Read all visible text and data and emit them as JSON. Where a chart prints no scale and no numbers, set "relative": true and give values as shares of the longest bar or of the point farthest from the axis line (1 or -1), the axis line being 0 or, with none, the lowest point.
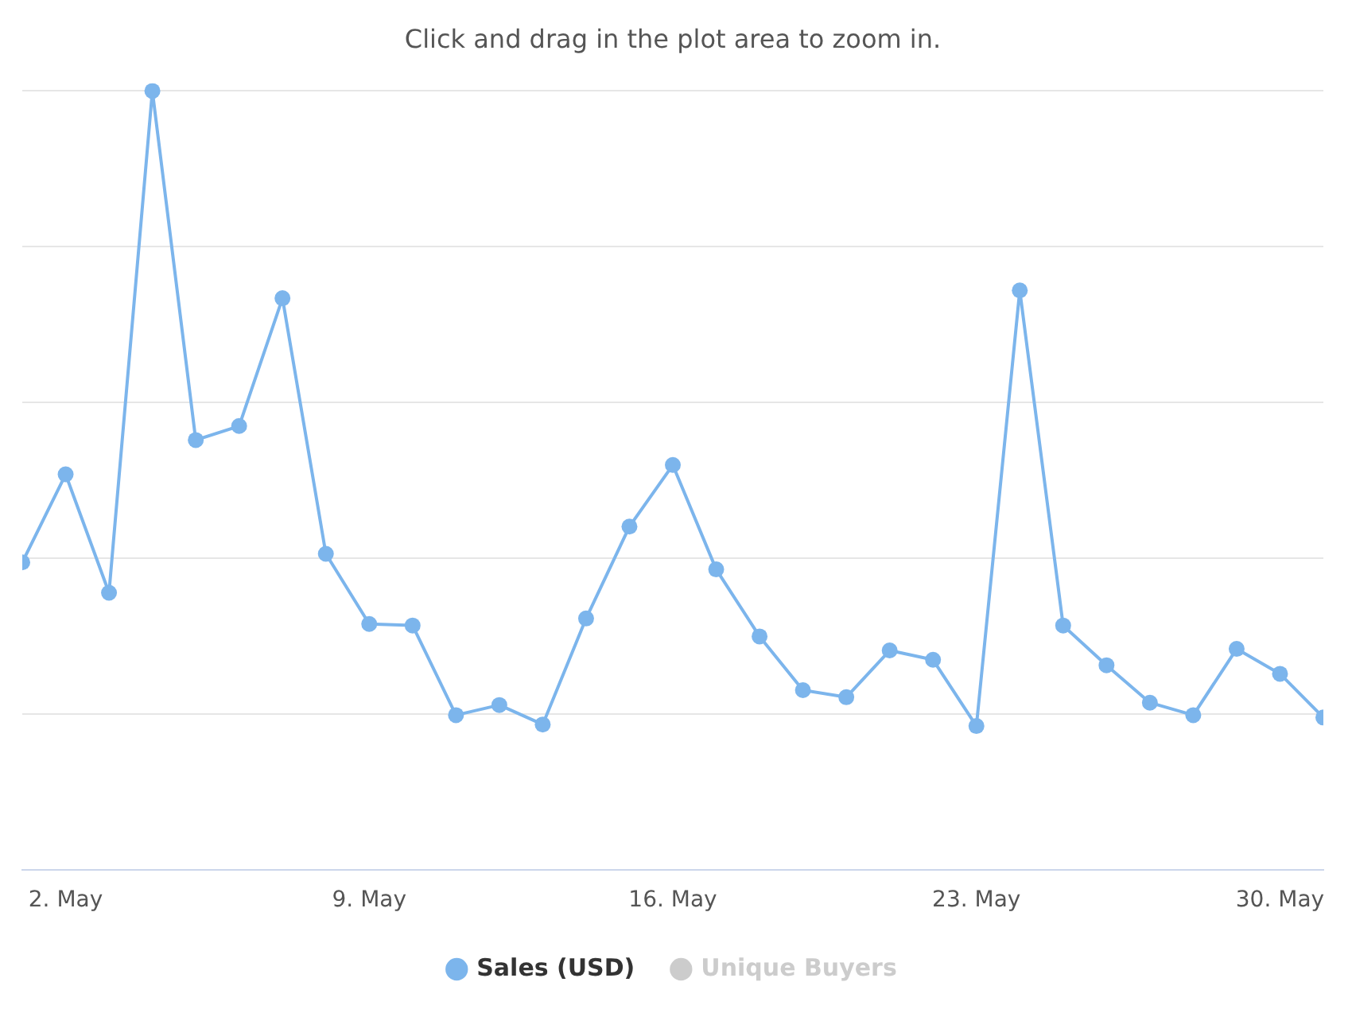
{
  "chart_data": {
    "type": "line",
    "title": "Click and drag in the plot area to zoom in.",
    "relative": true,
    "x": [
      "--05-01",
      "--05-02",
      "--05-03",
      "--05-04",
      "--05-05",
      "--05-06",
      "--05-07",
      "--05-08",
      "--05-09",
      "--05-10",
      "--05-11",
      "--05-12",
      "--05-13",
      "--05-14",
      "--05-15",
      "--05-16",
      "--05-17",
      "--05-18",
      "--05-19",
      "--05-20",
      "--05-21",
      "--05-22",
      "--05-23",
      "--05-24",
      "--05-25",
      "--05-26",
      "--05-27",
      "--05-28",
      "--05-29",
      "--05-30",
      "--05-31"
    ],
    "xlim": [
      "--05-01",
      "--05-31"
    ],
    "xticks": [
      {
        "value": "--05-02",
        "label": "2. May"
      },
      {
        "value": "--05-09",
        "label": "9. May"
      },
      {
        "value": "--05-16",
        "label": "16. May"
      },
      {
        "value": "--05-23",
        "label": "23. May"
      },
      {
        "value": "--05-30",
        "label": "30. May"
      }
    ],
    "series": [
      {
        "name": "Sales (USD)",
        "color": "#7cb5ec",
        "values": [
          0.395,
          0.508,
          0.356,
          1,
          0.552,
          0.57,
          0.734,
          0.406,
          0.316,
          0.314,
          0.199,
          0.212,
          0.187,
          0.323,
          0.441,
          0.52,
          0.386,
          0.3,
          0.231,
          0.222,
          0.282,
          0.27,
          0.185,
          0.744,
          0.314,
          0.263,
          0.215,
          0.199,
          0.284,
          0.252,
          0.196
        ]
      },
      {
        "name": "Unique Buyers",
        "color": "#cccccc",
        "values": [
          null,
          null,
          null,
          null,
          null,
          null,
          null,
          null,
          null,
          null,
          null,
          null,
          null,
          null,
          null,
          null,
          null,
          null,
          null,
          null,
          null,
          null,
          null,
          null,
          null,
          null,
          null,
          null,
          null,
          null,
          null
        ]
      }
    ],
    "grid": "y",
    "legend": "bottom",
    "marker": "circle",
    "line_style": "solid"
  }
}
